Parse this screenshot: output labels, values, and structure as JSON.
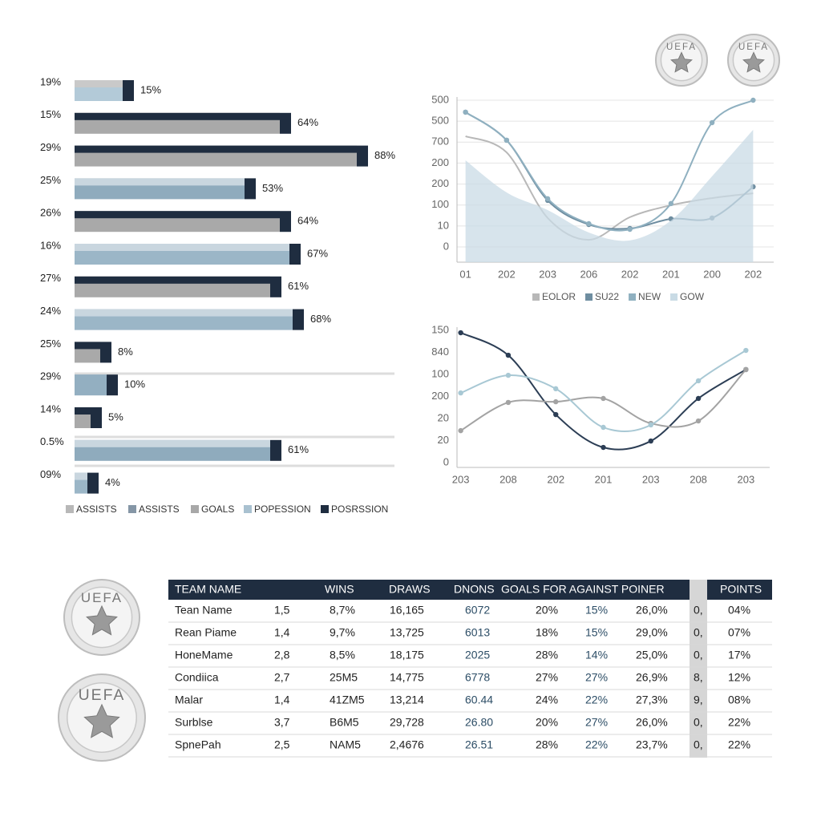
{
  "logo_text": "UEFA",
  "chart_data": [
    {
      "type": "bar",
      "orientation": "horizontal",
      "categories": [
        "19%",
        "15%",
        "29%",
        "25%",
        "26%",
        "16%",
        "27%",
        "24%",
        "25%",
        "29%",
        "14%",
        "0.5%",
        "09%"
      ],
      "values": [
        15,
        64,
        88,
        53,
        64,
        67,
        61,
        68,
        8,
        10,
        5,
        61,
        4
      ],
      "value_labels": [
        "15%",
        "64%",
        "88%",
        "53%",
        "64%",
        "67%",
        "61%",
        "68%",
        "8%",
        "10%",
        "5%",
        "61%",
        "4%"
      ],
      "colors": [
        "#b3cad8",
        "#a9a9a9",
        "#a9a9a9",
        "#8fabbd",
        "#a9a9a9",
        "#9bb6c7",
        "#a9a9a9",
        "#9bb6c7",
        "#a9a9a9",
        "#93afc1",
        "#a9a9a9",
        "#8fabbd",
        "#9bb6c7"
      ],
      "top_colors": [
        "#c9c9c9",
        "#1f2d40",
        "#1f2d40",
        "#c9d6df",
        "#1f2d40",
        "#c9d6df",
        "#1f2d40",
        "#c9d6df",
        "#1f2d40",
        "#93afc1",
        "#1f2d40",
        "#c9d6df",
        "#c9d6df"
      ],
      "cap_color": "#1f2d40",
      "xlim": [
        0,
        100
      ],
      "legend": [
        {
          "name": "ASSISTS",
          "color": "#b8b8b8"
        },
        {
          "name": "ASSISTS",
          "color": "#8596a6"
        },
        {
          "name": "GOALS",
          "color": "#a8a8a8"
        },
        {
          "name": "POPESSION",
          "color": "#a9c1d0"
        },
        {
          "name": "POSRSSION",
          "color": "#1f2d40"
        }
      ]
    },
    {
      "type": "line",
      "categories": [
        "01",
        "202",
        "203",
        "206",
        "202",
        "201",
        "200",
        "202"
      ],
      "ylim": [
        0,
        700
      ],
      "yticks": [
        0,
        {
          "value": 100,
          "label": "10"
        },
        {
          "value": 200,
          "label": "100"
        },
        {
          "value": 300,
          "label": "200"
        },
        {
          "value": 400,
          "label": "200"
        },
        {
          "value": 500,
          "label": "700"
        },
        {
          "value": 600,
          "label": "500"
        },
        {
          "value": 700,
          "label": "500"
        }
      ],
      "grid": true,
      "series": [
        {
          "name": "EOLOR",
          "color": "#b8b8b8",
          "values": [
            528,
            451,
            138,
            34,
            142,
            199,
            233,
            256
          ]
        },
        {
          "name": "SU22",
          "color": "#6e8da0",
          "markers": true,
          "values": [
            643,
            509,
            222,
            107,
            88,
            134,
            138,
            287
          ]
        },
        {
          "name": "NEW",
          "color": "#8fb0c0",
          "markers": true,
          "values": [
            643,
            509,
            230,
            111,
            84,
            207,
            593,
            700
          ]
        },
        {
          "name": "GOW",
          "color": "#c9dbe5",
          "area": true,
          "values": [
            413,
            260,
            176,
            69,
            31,
            126,
            337,
            559
          ]
        }
      ]
    },
    {
      "type": "line",
      "categories": [
        "203",
        "208",
        "202",
        "201",
        "203",
        "208",
        "203"
      ],
      "ylim": [
        0,
        600
      ],
      "yticks": [
        0,
        {
          "value": 100,
          "label": "20"
        },
        {
          "value": 200,
          "label": "20"
        },
        {
          "value": 300,
          "label": "200"
        },
        {
          "value": 400,
          "label": "100"
        },
        {
          "value": 500,
          "label": "840"
        },
        {
          "value": 600,
          "label": "150"
        }
      ],
      "grid": false,
      "series": [
        {
          "color": "#2c3e55",
          "markers": true,
          "values": [
            589,
            487,
            218,
            69,
            98,
            291,
            422
          ]
        },
        {
          "color": "#a3a3a3",
          "markers": true,
          "values": [
            145,
            273,
            276,
            291,
            178,
            189,
            422
          ]
        },
        {
          "color": "#a8c8d4",
          "markers": true,
          "values": [
            316,
            396,
            335,
            160,
            171,
            371,
            509
          ]
        }
      ]
    }
  ],
  "table": {
    "header": [
      "TEAM NAME",
      "WINS",
      "DRAWS",
      "DNONS",
      "GOALS FOR AGAINST POINER",
      "POINTS"
    ],
    "rows": [
      [
        "Tean Name",
        "1,5",
        "8,7%",
        "16,165",
        "6072",
        "20%",
        "15%",
        "26,0%",
        "0,",
        "04%"
      ],
      [
        "Rean Piame",
        "1,4",
        "9,7%",
        "13,725",
        "6013",
        "18%",
        "15%",
        "29,0%",
        "0,",
        "07%"
      ],
      [
        "HoneMame",
        "2,8",
        "8,5%",
        "18,175",
        "2025",
        "28%",
        "14%",
        "25,0%",
        "0,",
        "17%"
      ],
      [
        "Condiica",
        "2,7",
        "25M5",
        "14,775",
        "6778",
        "27%",
        "27%",
        "26,9%",
        "8,",
        "12%"
      ],
      [
        "Malar",
        "1,4",
        "41ZM5",
        "13,214",
        "60.44",
        "24%",
        "22%",
        "27,3%",
        "9,",
        "08%"
      ],
      [
        "Surblse",
        "3,7",
        "B6M5",
        "29,728",
        "26.80",
        "20%",
        "27%",
        "26,0%",
        "0,",
        "22%"
      ],
      [
        "SpnePah",
        "2,5",
        "NAM5",
        "2,4676",
        "26.51",
        "28%",
        "22%",
        "23,7%",
        "0,",
        "22%"
      ]
    ]
  }
}
